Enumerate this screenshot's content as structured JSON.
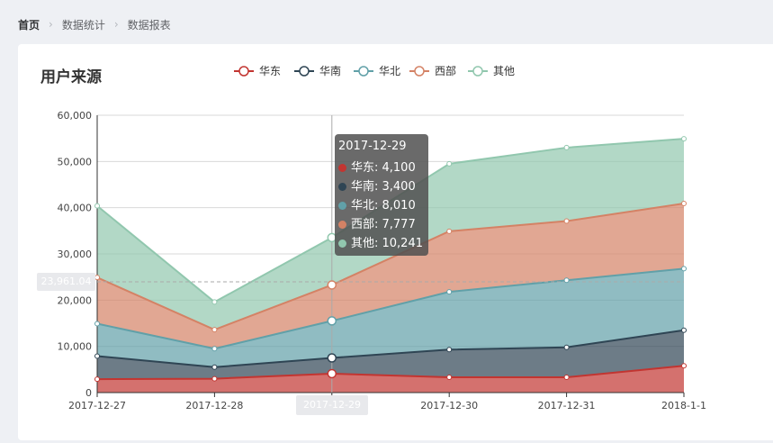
{
  "breadcrumb": {
    "items": [
      "首页",
      "数据统计",
      "数据报表"
    ]
  },
  "card": {
    "title": "用户来源"
  },
  "chart_data": {
    "type": "area",
    "stacked": true,
    "title": "用户来源",
    "x": [
      "2017-12-27",
      "2017-12-28",
      "2017-12-29",
      "2017-12-30",
      "2017-12-31",
      "2018-1-1"
    ],
    "ylim": [
      0,
      60000
    ],
    "yticks": [
      "0",
      "10,000",
      "20,000",
      "30,000",
      "40,000",
      "50,000",
      "60,000"
    ],
    "grid": true,
    "legend_position": "top-center",
    "series": [
      {
        "name": "华东",
        "color": "#c23531",
        "values": [
          2900,
          3000,
          4100,
          3300,
          3300,
          5800
        ]
      },
      {
        "name": "华南",
        "color": "#2f4554",
        "values": [
          5000,
          2500,
          3400,
          6000,
          6500,
          7700
        ]
      },
      {
        "name": "华北",
        "color": "#61a0a8",
        "values": [
          7000,
          4000,
          8010,
          12500,
          14500,
          13300
        ]
      },
      {
        "name": "西部",
        "color": "#d48265",
        "values": [
          10000,
          4100,
          7777,
          13100,
          12800,
          14100
        ]
      },
      {
        "name": "其他",
        "color": "#91c7ae",
        "values": [
          15500,
          6000,
          10241,
          14600,
          15900,
          14000
        ]
      }
    ],
    "tooltip": {
      "title": "2017-12-29",
      "rows": [
        "华东: 4,100",
        "华南: 3,400",
        "华北: 8,010",
        "西部: 7,777",
        "其他: 10,241"
      ]
    },
    "axis_pointer": {
      "y_label": "23,961.04",
      "x_label": "2017-12-29"
    }
  }
}
